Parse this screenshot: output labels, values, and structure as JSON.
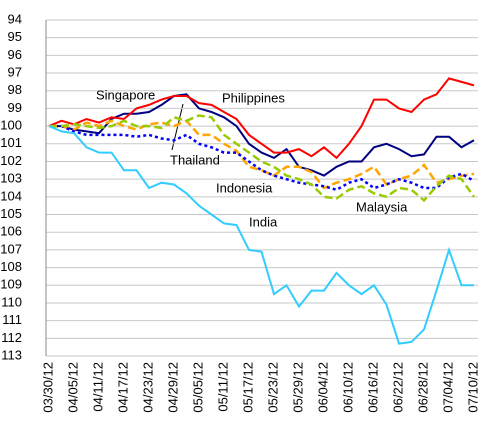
{
  "chart_data": {
    "type": "line",
    "categories": [
      "03/30/12",
      null,
      "04/05/12",
      null,
      "04/11/12",
      null,
      "04/17/12",
      null,
      "04/23/12",
      null,
      "04/29/12",
      null,
      "05/05/12",
      null,
      "05/11/12",
      null,
      "05/17/12",
      null,
      "05/23/12",
      null,
      "05/29/12",
      null,
      "06/04/12",
      null,
      "06/10/12",
      null,
      "06/16/12",
      null,
      "06/22/12",
      null,
      "06/28/12",
      null,
      "07/04/12",
      null,
      "07/10/12"
    ],
    "ylim": [
      94,
      113
    ],
    "y_inverted": true,
    "yticks": [
      94,
      95,
      96,
      97,
      98,
      99,
      100,
      101,
      102,
      103,
      104,
      105,
      106,
      107,
      108,
      109,
      110,
      111,
      112,
      113
    ],
    "grid": true,
    "series": [
      {
        "name": "Singapore",
        "color": "#000080",
        "style": "solid",
        "values": [
          100,
          100,
          100.2,
          100.3,
          100.4,
          99.6,
          99.3,
          99.3,
          99.2,
          98.8,
          98.3,
          98.2,
          99,
          99.2,
          99.5,
          100,
          101,
          101.5,
          101.8,
          101.3,
          102.3,
          102.5,
          102.8,
          102.3,
          102,
          102,
          101.2,
          101,
          101.3,
          101.7,
          101.6,
          100.6,
          100.6,
          101.2,
          100.8
        ]
      },
      {
        "name": "Philippines",
        "color": "#ff0000",
        "style": "solid",
        "values": [
          100,
          99.7,
          99.9,
          99.6,
          99.8,
          99.5,
          99.6,
          99,
          98.8,
          98.5,
          98.3,
          98.3,
          98.7,
          98.8,
          99.2,
          99.6,
          100.5,
          101,
          101.5,
          101.5,
          101.3,
          101.7,
          101.2,
          101.8,
          101,
          100,
          98.5,
          98.5,
          99,
          99.2,
          98.5,
          98.2,
          97.3,
          97.5,
          97.7
        ]
      },
      {
        "name": "Thailand",
        "color": "#ffa500",
        "style": "dashed",
        "values": [
          100,
          100,
          100.2,
          99.8,
          100,
          99.7,
          100,
          100.2,
          99.9,
          99.8,
          100,
          99.7,
          100.5,
          100.5,
          101,
          101.4,
          102.3,
          102.5,
          102.8,
          102.3,
          102.3,
          102.6,
          103.5,
          103.2,
          103,
          102.7,
          102.3,
          103.3,
          103,
          102.8,
          102.2,
          103.2,
          103,
          102.8,
          102.7
        ]
      },
      {
        "name": "Indonesia",
        "color": "#0000ff",
        "style": "dotted",
        "values": [
          100,
          100,
          100.3,
          100.5,
          100.5,
          100.5,
          100.5,
          100.6,
          100.5,
          100.7,
          100.8,
          100.5,
          101,
          101.2,
          101.5,
          101.5,
          102,
          102.5,
          102.8,
          103,
          103.2,
          103.3,
          103.4,
          103.6,
          103.2,
          103,
          103.5,
          103.3,
          103,
          103.2,
          103.5,
          103.5,
          102.9,
          102.7,
          103.1
        ]
      },
      {
        "name": "Malaysia",
        "color": "#99cc00",
        "style": "dashed",
        "values": [
          100,
          100,
          99.9,
          100,
          100.1,
          100,
          99.7,
          100,
          100,
          100.1,
          99.5,
          99.7,
          99.4,
          99.5,
          100.5,
          101,
          101.5,
          102,
          102.3,
          102.8,
          103,
          103.3,
          104,
          104.1,
          103.6,
          103.4,
          103.8,
          104,
          103.5,
          103.6,
          104.2,
          103.4,
          102.8,
          103,
          104
        ]
      },
      {
        "name": "India",
        "color": "#33ccff",
        "style": "solid",
        "values": [
          100,
          100.3,
          100.4,
          101.2,
          101.5,
          101.5,
          102.5,
          102.5,
          103.5,
          103.2,
          103.3,
          103.8,
          104.5,
          105,
          105.5,
          105.6,
          107,
          107.1,
          109.5,
          109,
          110.2,
          109.3,
          109.3,
          108.3,
          109,
          109.5,
          109,
          110.1,
          112.3,
          112.2,
          111.5,
          109.3,
          107,
          109,
          109
        ]
      }
    ]
  }
}
